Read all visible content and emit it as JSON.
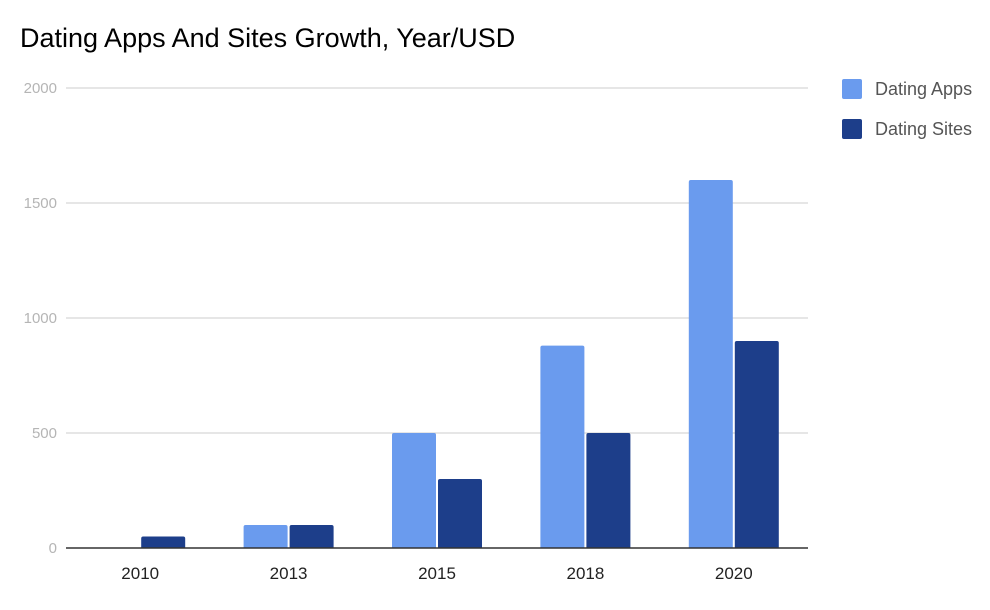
{
  "chart_data": {
    "type": "bar",
    "title": "Dating Apps And Sites Growth, Year/USD",
    "xlabel": "",
    "ylabel": "",
    "categories": [
      "2010",
      "2013",
      "2015",
      "2018",
      "2020"
    ],
    "series": [
      {
        "name": "Dating Apps",
        "color": "#6a9bee",
        "values": [
          0,
          100,
          500,
          880,
          1600
        ]
      },
      {
        "name": "Dating Sites",
        "color": "#1d3e8a",
        "values": [
          50,
          100,
          300,
          500,
          900
        ]
      }
    ],
    "ylim": [
      0,
      2000
    ],
    "yticks": [
      "0",
      "500",
      "1000",
      "1500",
      "2000"
    ],
    "grid": true,
    "legend_position": "right"
  }
}
